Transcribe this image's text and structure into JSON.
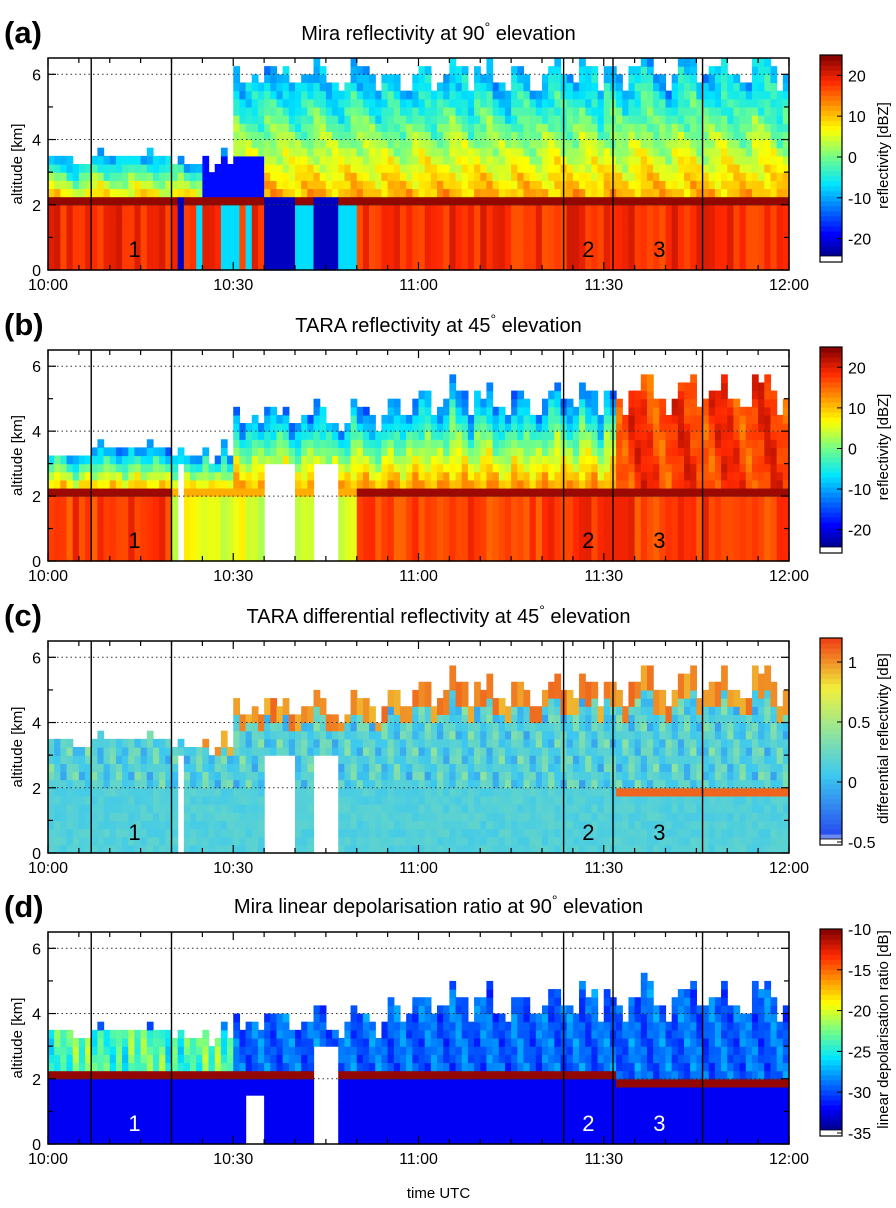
{
  "figure": {
    "xlabel": "time UTC"
  },
  "chart_data": [
    {
      "type": "heatmap",
      "panel_label": "(a)",
      "title": "Mira reflectivity at 90° elevation",
      "title_main": "Mira reflectivity at 90",
      "title_deg": "°",
      "title_tail": " elevation",
      "ylabel": "altitude [km]",
      "y_ticks": [
        "0",
        "2",
        "4",
        "6"
      ],
      "ylim": [
        0,
        6.5
      ],
      "x_ticks": [
        "10:00",
        "10:30",
        "11:00",
        "11:30",
        "12:00"
      ],
      "xlim_minutes": [
        0,
        120
      ],
      "grid": "horizontal dotted at 2, 4, 6 km",
      "case_lines_minutes": [
        7,
        20,
        83.5,
        91.5,
        106
      ],
      "case_labels": [
        {
          "text": "1",
          "t": 14
        },
        {
          "text": "2",
          "t": 87.5
        },
        {
          "text": "3",
          "t": 99
        }
      ],
      "colorbar": {
        "label": "reflectivity [dBZ]",
        "ticks": [
          "20",
          "10",
          "0",
          "-10",
          "-20"
        ],
        "tick_values": [
          20,
          10,
          0,
          -10,
          -20
        ],
        "range": [
          -25,
          25
        ]
      },
      "notable_features": "Bright band near 2 km; precipitation reaching ground after 10:55"
    },
    {
      "type": "heatmap",
      "panel_label": "(b)",
      "title": "TARA reflectivity at 45° elevation",
      "title_main": "TARA reflectivity at 45",
      "title_deg": "°",
      "title_tail": " elevation",
      "ylabel": "altitude [km]",
      "y_ticks": [
        "0",
        "2",
        "4",
        "6"
      ],
      "ylim": [
        0,
        6.5
      ],
      "x_ticks": [
        "10:00",
        "10:30",
        "11:00",
        "11:30",
        "12:00"
      ],
      "xlim_minutes": [
        0,
        120
      ],
      "grid": "horizontal dotted at 2, 4, 6 km",
      "case_lines_minutes": [
        7,
        20,
        83.5,
        91.5,
        106
      ],
      "case_labels": [
        {
          "text": "1",
          "t": 14
        },
        {
          "text": "2",
          "t": 87.5
        },
        {
          "text": "3",
          "t": 99
        }
      ],
      "colorbar": {
        "label": "reflectivity [dBZ]",
        "ticks": [
          "20",
          "10",
          "0",
          "-10",
          "-20"
        ],
        "tick_values": [
          20,
          10,
          0,
          -10,
          -20
        ],
        "range": [
          -25,
          25
        ]
      }
    },
    {
      "type": "heatmap",
      "panel_label": "(c)",
      "title": "TARA differential reflectivity at 45° elevation",
      "title_main": "TARA differential reflectivity at 45",
      "title_deg": "°",
      "title_tail": " elevation",
      "ylabel": "altitude [km]",
      "y_ticks": [
        "0",
        "2",
        "4",
        "6"
      ],
      "ylim": [
        0,
        6.5
      ],
      "x_ticks": [
        "10:00",
        "10:30",
        "11:00",
        "11:30",
        "12:00"
      ],
      "xlim_minutes": [
        0,
        120
      ],
      "grid": "horizontal dotted at 2, 4, 6 km",
      "case_lines_minutes": [
        7,
        20,
        83.5,
        91.5,
        106
      ],
      "case_labels": [
        {
          "text": "1",
          "t": 14
        },
        {
          "text": "2",
          "t": 87.5
        },
        {
          "text": "3",
          "t": 99
        }
      ],
      "colorbar": {
        "label": "differential reflectivity [dB]",
        "ticks": [
          "1",
          "0.5",
          "0",
          "-0.5"
        ],
        "tick_values": [
          1,
          0.5,
          0,
          -0.5
        ],
        "range": [
          -0.5,
          1.2
        ]
      }
    },
    {
      "type": "heatmap",
      "panel_label": "(d)",
      "title": "Mira linear depolarisation ratio at 90° elevation",
      "title_main": "Mira linear depolarisation ratio at 90",
      "title_deg": "°",
      "title_tail": " elevation",
      "ylabel": "altitude [km]",
      "y_ticks": [
        "0",
        "2",
        "4",
        "6"
      ],
      "ylim": [
        0,
        6.5
      ],
      "x_ticks": [
        "10:00",
        "10:30",
        "11:00",
        "11:30",
        "12:00"
      ],
      "xlim_minutes": [
        0,
        120
      ],
      "grid": "horizontal dotted at 2, 4, 6 km",
      "case_lines_minutes": [
        7,
        20,
        83.5,
        91.5,
        106
      ],
      "case_labels": [
        {
          "text": "1",
          "t": 14
        },
        {
          "text": "2",
          "t": 87.5
        },
        {
          "text": "3",
          "t": 99
        }
      ],
      "colorbar": {
        "label": "linear depolarisation ratio [dB]",
        "ticks": [
          "-10",
          "-15",
          "-20",
          "-25",
          "-30",
          "-35"
        ],
        "tick_values": [
          -10,
          -15,
          -20,
          -25,
          -30,
          -35
        ],
        "range": [
          -35,
          -10
        ]
      },
      "notable_features": "Melting layer with high LDR near 2 km, drops to ~1.8 km after 11:35"
    }
  ]
}
